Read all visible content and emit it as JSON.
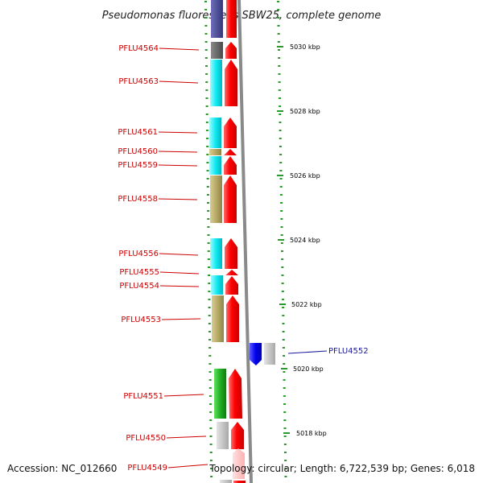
{
  "title": "Pseudomonas fluorescens SBW25, complete genome",
  "footer": {
    "accession": "Accession: NC_012660",
    "summary": "Topology: circular; Length: 6,722,539 bp; Genes: 6,018"
  },
  "colors": {
    "forward_cds": "#ee1111",
    "reverse_cds": "#1515ee",
    "backbone": "#888888",
    "tick": "#2a9a2a",
    "cog_cyan": "#22e8ee",
    "cog_khaki": "#b9ac6a",
    "cog_grey": "#666666",
    "cog_light_grey": "#c4c4c4",
    "cog_green": "#33bb33",
    "cog_purple": "#4a4a99",
    "label_forward": "#cc0000",
    "label_reverse": "#1a1a99"
  },
  "kbp_ticks": [
    "5030 kbp",
    "5028 kbp",
    "5026 kbp",
    "5024 kbp",
    "5022 kbp",
    "5020 kbp",
    "5018 kbp"
  ],
  "forward_genes": [
    {
      "name": "PFLU4564",
      "cog": "cog_grey"
    },
    {
      "name": "PFLU4563",
      "cog": "cog_cyan"
    },
    {
      "name": "PFLU4561",
      "cog": "cog_cyan"
    },
    {
      "name": "PFLU4560",
      "cog": "cog_khaki"
    },
    {
      "name": "PFLU4559",
      "cog": "cog_cyan"
    },
    {
      "name": "PFLU4558",
      "cog": "cog_khaki"
    },
    {
      "name": "PFLU4556",
      "cog": "cog_cyan"
    },
    {
      "name": "PFLU4555",
      "cog": "cog_cyan"
    },
    {
      "name": "PFLU4554",
      "cog": "cog_cyan"
    },
    {
      "name": "PFLU4553",
      "cog": "cog_khaki"
    },
    {
      "name": "PFLU4551",
      "cog": "cog_green"
    },
    {
      "name": "PFLU4550",
      "cog": "cog_light_grey"
    },
    {
      "name": "PFLU4549",
      "cog": "cog_light_grey"
    }
  ],
  "reverse_genes": [
    {
      "name": "PFLU4552",
      "cog": "cog_light_grey"
    }
  ]
}
